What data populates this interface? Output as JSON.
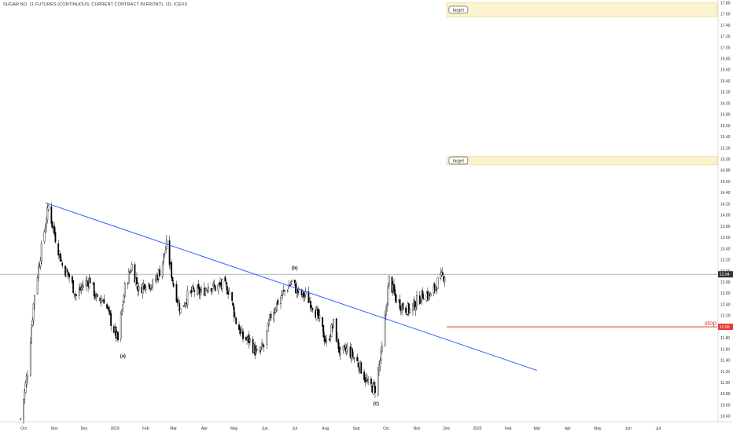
{
  "chart_data": {
    "type": "candlestick",
    "title": "SUGAR NO. 11 FUTURES (CONTINUOUS: CURRENT CONTRACT IN FRONT), 1D, ICEUS",
    "ylim": [
      10.3,
      17.85
    ],
    "y_ticks": [
      17.8,
      17.6,
      17.4,
      17.2,
      17.0,
      16.8,
      16.6,
      16.4,
      16.2,
      16.0,
      15.8,
      15.6,
      15.4,
      15.2,
      15.0,
      14.8,
      14.6,
      14.4,
      14.2,
      14.0,
      13.8,
      13.6,
      13.4,
      13.2,
      13.0,
      12.8,
      12.6,
      12.4,
      12.2,
      12.0,
      11.8,
      11.6,
      11.4,
      11.2,
      11.0,
      10.8,
      10.6,
      10.4
    ],
    "x_range": [
      "2018-10-01",
      "2020-08-05"
    ],
    "x_ticks": [
      {
        "label": "Oct",
        "date": "2018-10-01"
      },
      {
        "label": "Nov",
        "date": "2018-11-01"
      },
      {
        "label": "Dec",
        "date": "2018-12-01"
      },
      {
        "label": "2019",
        "date": "2019-01-01"
      },
      {
        "label": "Feb",
        "date": "2019-02-01"
      },
      {
        "label": "Mar",
        "date": "2019-03-01"
      },
      {
        "label": "Apr",
        "date": "2019-04-01"
      },
      {
        "label": "May",
        "date": "2019-05-01"
      },
      {
        "label": "Jun",
        "date": "2019-06-01"
      },
      {
        "label": "Jul",
        "date": "2019-07-01"
      },
      {
        "label": "Aug",
        "date": "2019-08-01"
      },
      {
        "label": "Sep",
        "date": "2019-09-01"
      },
      {
        "label": "Oct",
        "date": "2019-10-01"
      },
      {
        "label": "Nov",
        "date": "2019-11-01"
      },
      {
        "label": "Dec",
        "date": "2019-12-01"
      },
      {
        "label": "2020",
        "date": "2020-01-01"
      },
      {
        "label": "Feb",
        "date": "2020-02-01"
      },
      {
        "label": "Mar",
        "date": "2020-03-01"
      },
      {
        "label": "Apr",
        "date": "2020-04-01"
      },
      {
        "label": "May",
        "date": "2020-05-01"
      },
      {
        "label": "Jun",
        "date": "2020-06-01"
      },
      {
        "label": "Jul",
        "date": "2020-07-01"
      }
    ],
    "price_path": [
      {
        "date": "2018-09-28",
        "close": 10.35
      },
      {
        "date": "2018-10-05",
        "close": 11.2
      },
      {
        "date": "2018-10-12",
        "close": 12.6
      },
      {
        "date": "2018-10-19",
        "close": 13.4
      },
      {
        "date": "2018-10-26",
        "close": 14.15
      },
      {
        "date": "2018-11-02",
        "close": 13.6
      },
      {
        "date": "2018-11-09",
        "close": 13.1
      },
      {
        "date": "2018-11-16",
        "close": 12.9
      },
      {
        "date": "2018-11-23",
        "close": 12.55
      },
      {
        "date": "2018-11-30",
        "close": 12.75
      },
      {
        "date": "2018-12-07",
        "close": 12.85
      },
      {
        "date": "2018-12-14",
        "close": 12.45
      },
      {
        "date": "2018-12-21",
        "close": 12.5
      },
      {
        "date": "2018-12-28",
        "close": 12.1
      },
      {
        "date": "2019-01-04",
        "close": 11.75
      },
      {
        "date": "2019-01-11",
        "close": 12.7
      },
      {
        "date": "2019-01-18",
        "close": 13.1
      },
      {
        "date": "2019-01-25",
        "close": 12.65
      },
      {
        "date": "2019-02-01",
        "close": 12.8
      },
      {
        "date": "2019-02-08",
        "close": 12.75
      },
      {
        "date": "2019-02-15",
        "close": 13.0
      },
      {
        "date": "2019-02-22",
        "close": 13.45
      },
      {
        "date": "2019-03-01",
        "close": 12.75
      },
      {
        "date": "2019-03-08",
        "close": 12.3
      },
      {
        "date": "2019-03-15",
        "close": 12.55
      },
      {
        "date": "2019-03-22",
        "close": 12.65
      },
      {
        "date": "2019-03-29",
        "close": 12.6
      },
      {
        "date": "2019-04-05",
        "close": 12.75
      },
      {
        "date": "2019-04-12",
        "close": 12.7
      },
      {
        "date": "2019-04-19",
        "close": 12.75
      },
      {
        "date": "2019-04-26",
        "close": 12.65
      },
      {
        "date": "2019-05-03",
        "close": 12.1
      },
      {
        "date": "2019-05-10",
        "close": 11.8
      },
      {
        "date": "2019-05-17",
        "close": 11.75
      },
      {
        "date": "2019-05-24",
        "close": 11.5
      },
      {
        "date": "2019-05-31",
        "close": 11.65
      },
      {
        "date": "2019-06-07",
        "close": 12.2
      },
      {
        "date": "2019-06-14",
        "close": 12.45
      },
      {
        "date": "2019-06-21",
        "close": 12.65
      },
      {
        "date": "2019-06-28",
        "close": 12.8
      },
      {
        "date": "2019-07-05",
        "close": 12.6
      },
      {
        "date": "2019-07-12",
        "close": 12.55
      },
      {
        "date": "2019-07-19",
        "close": 12.4
      },
      {
        "date": "2019-07-26",
        "close": 12.1
      },
      {
        "date": "2019-08-02",
        "close": 11.7
      },
      {
        "date": "2019-08-09",
        "close": 12.05
      },
      {
        "date": "2019-08-16",
        "close": 11.5
      },
      {
        "date": "2019-08-23",
        "close": 11.6
      },
      {
        "date": "2019-08-30",
        "close": 11.45
      },
      {
        "date": "2019-09-06",
        "close": 11.25
      },
      {
        "date": "2019-09-13",
        "close": 10.95
      },
      {
        "date": "2019-09-20",
        "close": 10.9
      },
      {
        "date": "2019-09-27",
        "close": 11.6
      },
      {
        "date": "2019-10-04",
        "close": 12.85
      },
      {
        "date": "2019-10-11",
        "close": 12.5
      },
      {
        "date": "2019-10-18",
        "close": 12.35
      },
      {
        "date": "2019-10-25",
        "close": 12.3
      },
      {
        "date": "2019-11-01",
        "close": 12.45
      },
      {
        "date": "2019-11-08",
        "close": 12.6
      },
      {
        "date": "2019-11-15",
        "close": 12.55
      },
      {
        "date": "2019-11-22",
        "close": 12.8
      },
      {
        "date": "2019-11-29",
        "close": 12.94
      }
    ],
    "trendline": {
      "start": {
        "date": "2018-10-23",
        "value": 14.22
      },
      "end": {
        "date": "2020-03-01",
        "value": 11.22
      },
      "color": "#2962ff"
    },
    "last_price": {
      "value": 12.94,
      "label": "12.94"
    },
    "stop": {
      "value": 12.0,
      "label": "stop",
      "price_label": "12.00",
      "start_date": "2019-12-01",
      "color": "#e53935"
    },
    "target_zones": [
      {
        "label": "target",
        "from": 17.55,
        "to": 17.8,
        "start_date": "2019-12-01"
      },
      {
        "label": "target",
        "from": 14.9,
        "to": 15.05,
        "start_date": "2019-12-01"
      }
    ],
    "wave_labels": [
      {
        "text": "(a)",
        "date": "2019-01-09",
        "value": 11.45
      },
      {
        "text": "(b)",
        "date": "2019-07-01",
        "value": 13.03
      },
      {
        "text": "(c)",
        "date": "2019-09-21",
        "value": 10.6
      }
    ],
    "colors": {
      "up": "#000000",
      "down": "#000000",
      "zone_fill": "#fdf3cc",
      "zone_border": "#e6d28a",
      "grid_line": "#888888"
    }
  }
}
